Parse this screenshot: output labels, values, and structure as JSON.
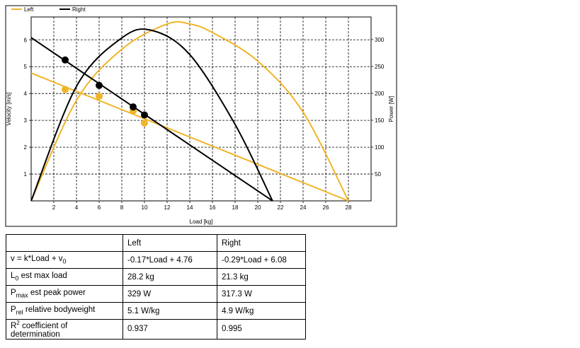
{
  "chart_data": {
    "type": "line",
    "xlabel": "Load [kg]",
    "ylabel": "Velocity [m/s]",
    "y2label": "Power [W]",
    "xlim": [
      0,
      30
    ],
    "ylim": [
      0,
      6.85
    ],
    "y2lim": [
      0,
      342
    ],
    "xticks": [
      2,
      4,
      6,
      8,
      10,
      12,
      14,
      16,
      18,
      20,
      22,
      24,
      26,
      28
    ],
    "yticks": [
      1,
      2,
      3,
      4,
      5,
      6
    ],
    "y2ticks": [
      50,
      100,
      150,
      200,
      250,
      300
    ],
    "grid": true,
    "legend": "top-left",
    "series": [
      {
        "name": "Left",
        "color": "#f0b429",
        "velocity_line": {
          "x": [
            0,
            28
          ],
          "y": [
            4.76,
            0
          ]
        },
        "points": [
          {
            "x": 3,
            "y": 4.15
          },
          {
            "x": 6,
            "y": 3.9
          },
          {
            "x": 9,
            "y": 3.35
          },
          {
            "x": 10,
            "y": 2.9
          }
        ],
        "power_curve": {
          "x": [
            0,
            4,
            8,
            12,
            14,
            16,
            20,
            24,
            28
          ],
          "y": [
            0,
            187,
            282,
            329,
            329,
            313,
            260,
            165,
            0
          ]
        }
      },
      {
        "name": "Right",
        "color": "#000000",
        "velocity_line": {
          "x": [
            0,
            21.3
          ],
          "y": [
            6.08,
            0
          ]
        },
        "points": [
          {
            "x": 3,
            "y": 5.25
          },
          {
            "x": 6,
            "y": 4.3
          },
          {
            "x": 9,
            "y": 3.5
          },
          {
            "x": 10,
            "y": 3.2
          }
        ],
        "power_curve": {
          "x": [
            0,
            4,
            8,
            10.65,
            14,
            18,
            21.3
          ],
          "y": [
            0,
            213,
            303,
            317,
            272,
            142,
            0
          ]
        }
      }
    ]
  },
  "table": {
    "headers": [
      "",
      "Left",
      "Right"
    ],
    "rows": [
      {
        "sym": "v = k*Load + v",
        "sub": "0",
        "sup": "",
        "desc": "",
        "left": "-0.17*Load + 4.76",
        "right": "-0.29*Load + 6.08"
      },
      {
        "sym": "L",
        "sub": "0",
        "sup": "",
        "desc": " est max load",
        "left": "28.2 kg",
        "right": "21.3 kg"
      },
      {
        "sym": "P",
        "sub": "max",
        "sup": "",
        "desc": " est peak power",
        "left": "329 W",
        "right": "317.3 W"
      },
      {
        "sym": "P",
        "sub": "rel",
        "sup": "",
        "desc": " relative bodyweight",
        "left": "5.1 W/kg",
        "right": "4.9 W/kg"
      },
      {
        "sym": "R",
        "sub": "",
        "sup": "2",
        "desc": " coefficient of determination",
        "left": "0.937",
        "right": "0.995"
      }
    ]
  }
}
